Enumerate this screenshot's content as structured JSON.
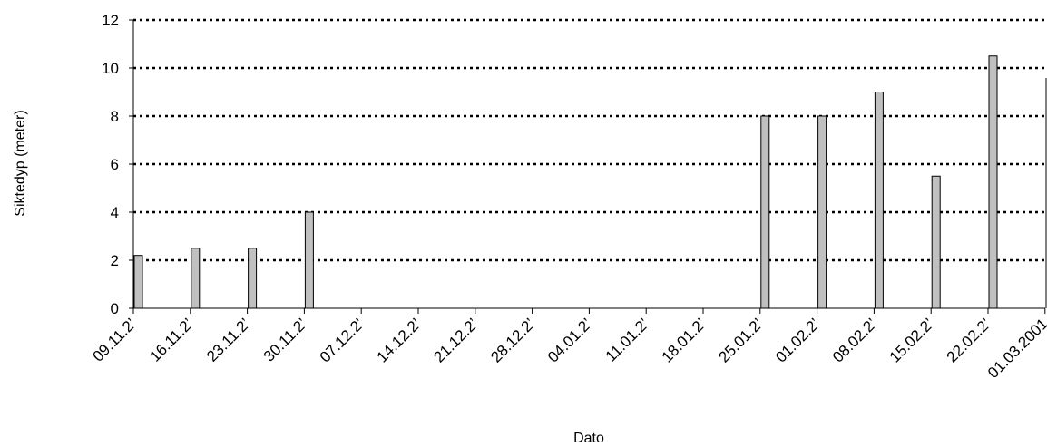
{
  "chart_data": {
    "type": "bar",
    "title": "",
    "xlabel": "Dato",
    "ylabel": "Siktedyp (meter)",
    "ylim": [
      0,
      12
    ],
    "yticks": [
      "0",
      "2",
      "4",
      "6",
      "8",
      "10",
      "12"
    ],
    "grid": true,
    "x_tick_labels": [
      "09.11.2’",
      "16.11.2’",
      "23.11.2’",
      "30.11.2’",
      "07.12.2’",
      "14.12.2’",
      "21.12.2’",
      "28.12.2’",
      "04.01.2’",
      "11.01.2’",
      "18.01.2’",
      "25.01.2’",
      "01.02.2’",
      "08.02.2’",
      "15.02.2’",
      "22.02.2’",
      "01.03.2001"
    ],
    "bars": [
      {
        "week": 0,
        "value": 2.2
      },
      {
        "week": 1,
        "value": 2.5
      },
      {
        "week": 2,
        "value": 2.5
      },
      {
        "week": 3,
        "value": 4
      },
      {
        "week": 11,
        "value": 8
      },
      {
        "week": 12,
        "value": 8
      },
      {
        "week": 13,
        "value": 9
      },
      {
        "week": 14,
        "value": 5.5
      },
      {
        "week": 15,
        "value": 10.5
      }
    ],
    "series_color": "#c0c0c0"
  }
}
